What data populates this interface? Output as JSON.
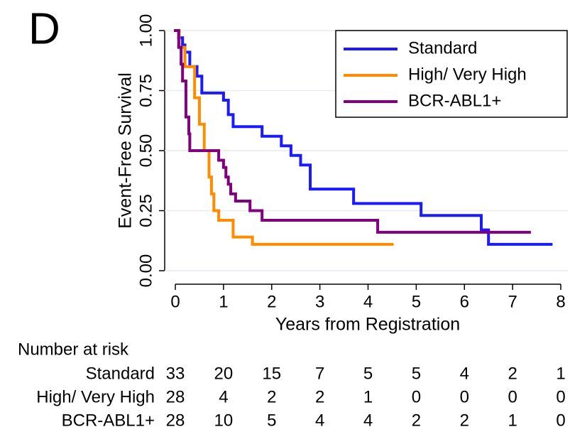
{
  "chart_data": {
    "type": "step",
    "panel_label": "D",
    "y_label": "Event-Free Survival",
    "x_label": "Years from Registration",
    "xlim": [
      0,
      8
    ],
    "xticks": [
      0,
      1,
      2,
      3,
      4,
      5,
      6,
      7,
      8
    ],
    "ylim": [
      0,
      1
    ],
    "yticks": [
      {
        "value": 0,
        "label": "0.00"
      },
      {
        "value": 0.25,
        "label": "0.25"
      },
      {
        "value": 0.5,
        "label": "0.50"
      },
      {
        "value": 0.75,
        "label": "0.75"
      },
      {
        "value": 1,
        "label": "1.00"
      }
    ],
    "grid": true,
    "legend": "upper right",
    "series": [
      {
        "name": "Standard",
        "color": "#1a1aff",
        "x": [
          0,
          0.07,
          0.15,
          0.2,
          0.3,
          0.45,
          0.55,
          1.0,
          1.1,
          1.2,
          1.8,
          2.2,
          2.4,
          2.6,
          2.8,
          3.7,
          5.1,
          6.35,
          6.5,
          7.8
        ],
        "values": [
          1,
          0.97,
          0.94,
          0.91,
          0.85,
          0.81,
          0.74,
          0.71,
          0.65,
          0.6,
          0.56,
          0.52,
          0.48,
          0.44,
          0.34,
          0.28,
          0.23,
          0.17,
          0.11,
          0.11
        ]
      },
      {
        "name": "High/ Very High",
        "color": "#ff8c00",
        "x": [
          0,
          0.08,
          0.2,
          0.4,
          0.5,
          0.6,
          0.7,
          0.75,
          0.8,
          0.9,
          1.2,
          1.6,
          4.5
        ],
        "values": [
          1,
          0.93,
          0.85,
          0.72,
          0.61,
          0.5,
          0.39,
          0.32,
          0.25,
          0.21,
          0.14,
          0.11,
          0.11
        ]
      },
      {
        "name": "BCR-ABL1+",
        "color": "#800080",
        "x": [
          0,
          0.07,
          0.12,
          0.15,
          0.22,
          0.28,
          0.3,
          0.9,
          1.0,
          1.05,
          1.1,
          1.15,
          1.25,
          1.55,
          1.8,
          4.2,
          7.35
        ],
        "values": [
          1,
          0.93,
          0.86,
          0.79,
          0.64,
          0.57,
          0.5,
          0.46,
          0.43,
          0.39,
          0.36,
          0.32,
          0.29,
          0.25,
          0.21,
          0.16,
          0.16
        ]
      }
    ],
    "risk_table": {
      "title": "Number at risk",
      "rows": [
        {
          "name": "Standard",
          "counts": [
            33,
            20,
            15,
            7,
            5,
            5,
            4,
            2,
            1
          ]
        },
        {
          "name": "High/ Very High",
          "counts": [
            28,
            4,
            2,
            2,
            1,
            0,
            0,
            0,
            0
          ]
        },
        {
          "name": "BCR-ABL1+",
          "counts": [
            28,
            10,
            5,
            4,
            4,
            2,
            2,
            1,
            0
          ]
        }
      ]
    }
  }
}
